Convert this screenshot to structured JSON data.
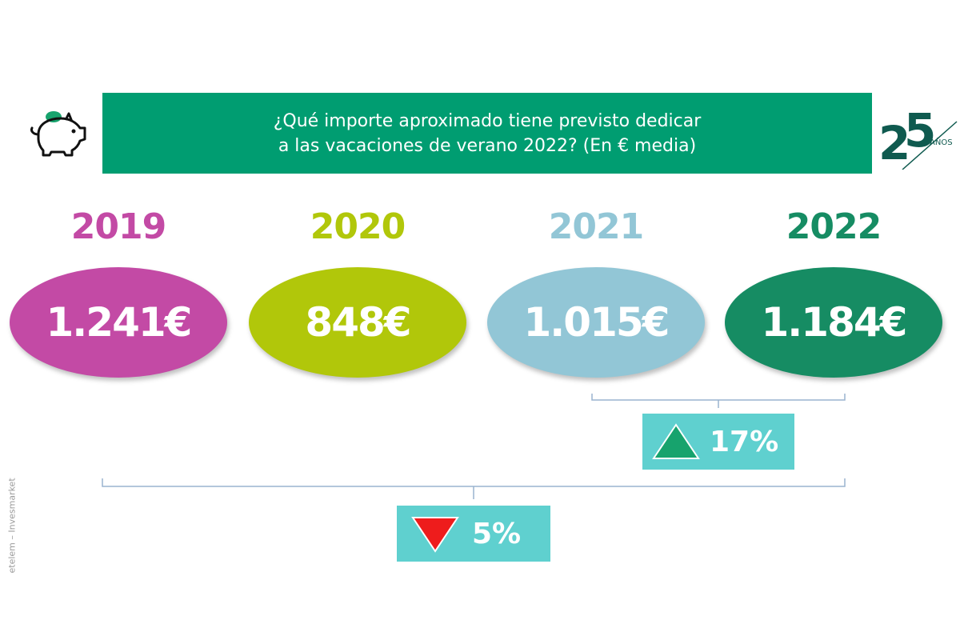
{
  "header": {
    "line1": "¿Qué importe aproximado tiene previsto dedicar",
    "line2": "a las vacaciones de verano 2022? (En € media)"
  },
  "logo": {
    "number_a": "2",
    "number_b": "5",
    "label": "AÑOS"
  },
  "credit": "etelem – Invesmarket",
  "colors": {
    "header_bg": "#009d71",
    "y2019": "#c34aa5",
    "y2020": "#b1c70a",
    "y2021": "#92c6d6",
    "y2022": "#168c63",
    "badge_bg": "#5fd0cf",
    "up_arrow": "#17a36d",
    "down_arrow": "#ee1c1c"
  },
  "chart_data": {
    "type": "bar",
    "categories": [
      "2019",
      "2020",
      "2021",
      "2022"
    ],
    "values": [
      1241,
      848,
      1015,
      1184
    ],
    "value_labels": [
      "1.241€",
      "848€",
      "1.015€",
      "1.184€"
    ],
    "title": "¿Qué importe aproximado tiene previsto dedicar a las vacaciones de verano 2022? (En € media)",
    "comparisons": [
      {
        "from": "2021",
        "to": "2022",
        "direction": "up",
        "label": "17%"
      },
      {
        "from": "2019",
        "to": "2022",
        "direction": "down",
        "label": "5%"
      }
    ]
  }
}
